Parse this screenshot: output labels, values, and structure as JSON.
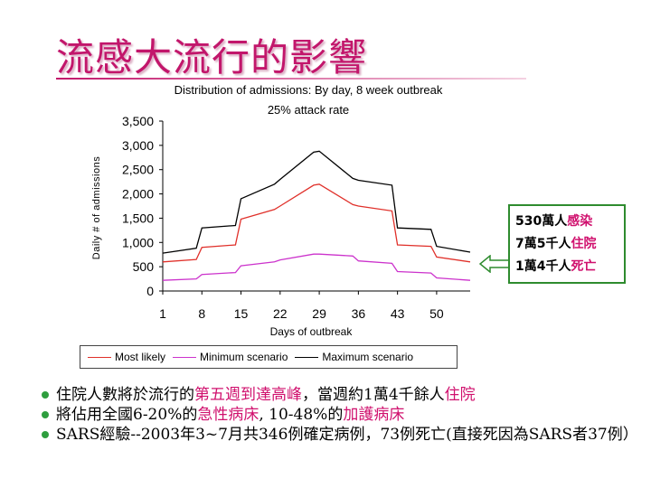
{
  "slide": {
    "title": "流感大流行的影響"
  },
  "chart_data": {
    "type": "line",
    "title": "Distribution of admissions: By day, 8 week outbreak",
    "subtitle": "25% attack rate",
    "xlabel": "Days of outbreak",
    "ylabel": "Daily # of admissions",
    "xlim": [
      1,
      56
    ],
    "ylim": [
      0,
      3500
    ],
    "x_ticks": [
      "1",
      "8",
      "15",
      "22",
      "29",
      "36",
      "43",
      "50"
    ],
    "y_ticks": [
      "0",
      "500",
      "1,000",
      "1,500",
      "2,000",
      "2,500",
      "3,000",
      "3,500"
    ],
    "legend_position": "bottom",
    "grid": false,
    "series": [
      {
        "name": "Most likely",
        "color": "#e0302a",
        "points": [
          [
            1,
            600
          ],
          [
            7,
            650
          ],
          [
            8,
            900
          ],
          [
            14,
            950
          ],
          [
            15,
            1480
          ],
          [
            21,
            1680
          ],
          [
            22,
            1750
          ],
          [
            28,
            2180
          ],
          [
            29,
            2200
          ],
          [
            35,
            1780
          ],
          [
            36,
            1750
          ],
          [
            42,
            1650
          ],
          [
            43,
            950
          ],
          [
            49,
            920
          ],
          [
            50,
            700
          ],
          [
            56,
            600
          ]
        ]
      },
      {
        "name": "Minimum scenario",
        "color": "#cc33cc",
        "points": [
          [
            1,
            220
          ],
          [
            7,
            250
          ],
          [
            8,
            340
          ],
          [
            14,
            380
          ],
          [
            15,
            520
          ],
          [
            21,
            600
          ],
          [
            22,
            640
          ],
          [
            28,
            760
          ],
          [
            29,
            760
          ],
          [
            35,
            720
          ],
          [
            36,
            620
          ],
          [
            42,
            570
          ],
          [
            43,
            400
          ],
          [
            49,
            370
          ],
          [
            50,
            270
          ],
          [
            56,
            220
          ]
        ]
      },
      {
        "name": "Maximum scenario",
        "color": "#000000",
        "points": [
          [
            1,
            780
          ],
          [
            7,
            880
          ],
          [
            8,
            1300
          ],
          [
            14,
            1350
          ],
          [
            15,
            1900
          ],
          [
            21,
            2200
          ],
          [
            22,
            2300
          ],
          [
            28,
            2860
          ],
          [
            29,
            2880
          ],
          [
            35,
            2320
          ],
          [
            36,
            2280
          ],
          [
            42,
            2180
          ],
          [
            43,
            1300
          ],
          [
            49,
            1270
          ],
          [
            50,
            920
          ],
          [
            56,
            800
          ]
        ]
      }
    ]
  },
  "callout": {
    "line1_num": "530萬人",
    "line1_hl": "感染",
    "line2_num": "7萬5千人",
    "line2_hl": "住院",
    "line3_num": "1萬4千人",
    "line3_hl": "死亡"
  },
  "bullets": {
    "b1_a": "住院人數將於流行的",
    "b1_b": "第五週到達高峰",
    "b1_c": "，當週約1萬4千餘人",
    "b1_d": "住院",
    "b2_a": "將佔用全國6-20%的",
    "b2_b": "急性病床",
    "b2_c": ", 10-48%的",
    "b2_d": "加護病床",
    "b3": "SARS經驗--2003年3~7月共346例確定病例，73例死亡(直接死因為SARS者37例）"
  },
  "colors": {
    "title": "#c2166b",
    "highlight": "#d0116e",
    "callout_border": "#2e8b2e",
    "bullet": "#2e9e3e"
  }
}
